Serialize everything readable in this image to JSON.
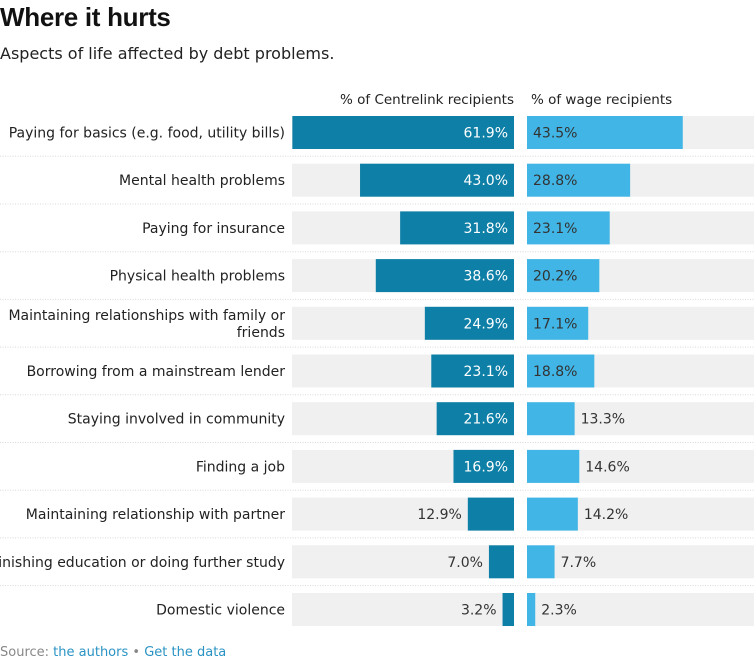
{
  "title": "Where it hurts",
  "subtitle": "Aspects of life affected by debt problems.",
  "source": {
    "prefix": "Source: ",
    "authors_link": "the authors",
    "separator": " • ",
    "data_link": "Get the data"
  },
  "colors": {
    "centrelink": "#0e7fa6",
    "wage": "#41b6e6",
    "track": "#f0f0f0",
    "divider": "#d9d9d9",
    "label_inside": "#ffffff",
    "label_outside": "#333333"
  },
  "chart_data": {
    "type": "bar",
    "orientation": "horizontal",
    "categories": [
      "Paying for basics (e.g. food, utility bills)",
      "Mental health problems",
      "Paying for insurance",
      "Physical health problems",
      "Maintaining relationships with family or friends",
      "Borrowing from a mainstream lender",
      "Staying involved in community",
      "Finding a job",
      "Maintaining relationship with partner",
      "Finishing education or doing further study",
      "Domestic violence"
    ],
    "category_lines": [
      [
        "Paying for basics (e.g. food, utility bills)"
      ],
      [
        "Mental health problems"
      ],
      [
        "Paying for insurance"
      ],
      [
        "Physical health problems"
      ],
      [
        "Maintaining relationships with family or",
        "friends"
      ],
      [
        "Borrowing from a mainstream lender"
      ],
      [
        "Staying involved in community"
      ],
      [
        "Finding a job"
      ],
      [
        "Maintaining relationship with partner"
      ],
      [
        "Finishing education or doing further study"
      ],
      [
        "Domestic violence"
      ]
    ],
    "series": [
      {
        "name": "% of Centrelink recipients",
        "values": [
          61.9,
          43.0,
          31.8,
          38.6,
          24.9,
          23.1,
          21.6,
          16.9,
          12.9,
          7.0,
          3.2
        ],
        "labels": [
          "61.9%",
          "43.0%",
          "31.8%",
          "38.6%",
          "24.9%",
          "23.1%",
          "21.6%",
          "16.9%",
          "12.9%",
          "7.0%",
          "3.2%"
        ]
      },
      {
        "name": "% of wage recipients",
        "values": [
          43.5,
          28.8,
          23.1,
          20.2,
          17.1,
          18.8,
          13.3,
          14.6,
          14.2,
          7.7,
          2.3
        ],
        "labels": [
          "43.5%",
          "28.8%",
          "23.1%",
          "20.2%",
          "17.1%",
          "18.8%",
          "13.3%",
          "14.6%",
          "14.2%",
          "7.7%",
          "2.3%"
        ]
      }
    ],
    "xlim": [
      0,
      62
    ],
    "grid": false,
    "legend": "column headers above bars"
  }
}
